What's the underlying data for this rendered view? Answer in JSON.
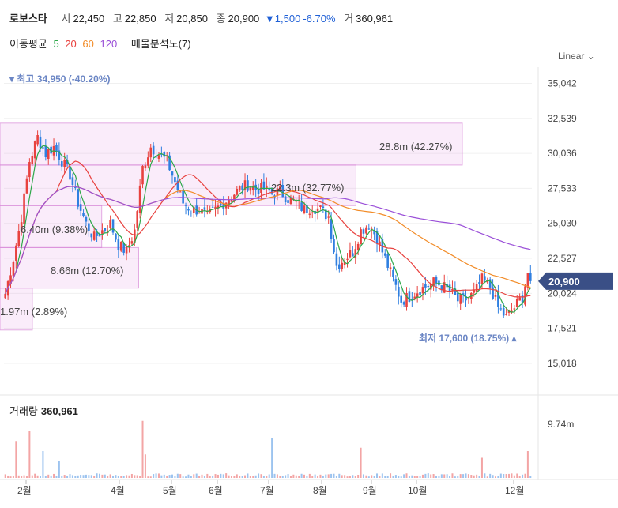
{
  "header": {
    "name": "로보스타",
    "open_label": "시",
    "open": "22,450",
    "high_label": "고",
    "high": "22,850",
    "low_label": "저",
    "low": "20,850",
    "close_label": "종",
    "close": "20,900",
    "change": "▼1,500",
    "change_pct": "-6.70%",
    "volume_label": "거",
    "volume": "360,961"
  },
  "indicators": {
    "ma_label": "이동평균",
    "ma": [
      {
        "label": "5",
        "color": "#2ea84a"
      },
      {
        "label": "20",
        "color": "#e8423f"
      },
      {
        "label": "60",
        "color": "#f28c28"
      },
      {
        "label": "120",
        "color": "#9a4fd8"
      }
    ],
    "profile_label": "매물분석도(7)"
  },
  "scale": {
    "label": "Linear",
    "icon": "chevron-down-icon"
  },
  "volume_panel": {
    "label": "거래량",
    "value": "360,961"
  },
  "chart_data": {
    "type": "candlestick",
    "price_axis": {
      "ticks": [
        "35,042",
        "32,539",
        "30,036",
        "27,533",
        "25,030",
        "22,527",
        "20,024",
        "17,521",
        "15,018"
      ],
      "ylim": [
        14000,
        36200
      ]
    },
    "volume_axis": {
      "ticks": [
        "9.74m"
      ]
    },
    "x_months": [
      "2월",
      "4월",
      "5월",
      "6월",
      "7월",
      "8월",
      "9월",
      "10월",
      "12월"
    ],
    "last_price": {
      "value": 20900,
      "label": "20,900"
    },
    "high_marker": {
      "value": 34950,
      "label": "최고 34,950 (-40.20%)"
    },
    "low_marker": {
      "value": 17600,
      "label": "최저 17,600 (18.75%)"
    },
    "volume_profile": [
      {
        "label": "28.8m (42.27%)",
        "low": 29200,
        "high": 32200,
        "length": 1.0
      },
      {
        "label": "22.3m (32.77%)",
        "low": 26300,
        "high": 29200,
        "length": 0.77
      },
      {
        "label": "6.40m (9.38%)",
        "low": 23300,
        "high": 26300,
        "length": 0.22
      },
      {
        "label": "8.66m (12.70%)",
        "low": 20400,
        "high": 23300,
        "length": 0.3
      },
      {
        "label": "1.97m (2.89%)",
        "low": 17400,
        "high": 20400,
        "length": 0.07
      }
    ],
    "price_keypoints": [
      [
        0,
        20000
      ],
      [
        3,
        22500
      ],
      [
        6,
        25500
      ],
      [
        9,
        29500
      ],
      [
        12,
        31200
      ],
      [
        15,
        30000
      ],
      [
        18,
        30500
      ],
      [
        21,
        29500
      ],
      [
        24,
        28500
      ],
      [
        27,
        26500
      ],
      [
        30,
        25000
      ],
      [
        33,
        24000
      ],
      [
        36,
        24500
      ],
      [
        39,
        25000
      ],
      [
        42,
        23500
      ],
      [
        45,
        23000
      ],
      [
        48,
        24500
      ],
      [
        51,
        29000
      ],
      [
        54,
        30500
      ],
      [
        57,
        30000
      ],
      [
        60,
        29500
      ],
      [
        63,
        28000
      ],
      [
        66,
        26500
      ],
      [
        69,
        26000
      ],
      [
        72,
        26000
      ],
      [
        75,
        25500
      ],
      [
        78,
        26000
      ],
      [
        81,
        26500
      ],
      [
        84,
        27000
      ],
      [
        87,
        27500
      ],
      [
        90,
        27800
      ],
      [
        93,
        27500
      ],
      [
        96,
        27500
      ],
      [
        99,
        27200
      ],
      [
        102,
        27300
      ],
      [
        105,
        26800
      ],
      [
        108,
        26500
      ],
      [
        111,
        26000
      ],
      [
        114,
        26200
      ],
      [
        117,
        26000
      ],
      [
        120,
        25500
      ],
      [
        123,
        22000
      ],
      [
        126,
        22500
      ],
      [
        129,
        23000
      ],
      [
        132,
        24500
      ],
      [
        135,
        25000
      ],
      [
        138,
        24000
      ],
      [
        141,
        22500
      ],
      [
        144,
        21000
      ],
      [
        147,
        19500
      ],
      [
        150,
        19800
      ],
      [
        153,
        20200
      ],
      [
        156,
        20500
      ],
      [
        159,
        20800
      ],
      [
        162,
        20600
      ],
      [
        165,
        20200
      ],
      [
        168,
        19500
      ],
      [
        171,
        19600
      ],
      [
        174,
        20000
      ],
      [
        177,
        21000
      ],
      [
        180,
        20500
      ],
      [
        183,
        19000
      ],
      [
        186,
        18300
      ],
      [
        189,
        19000
      ],
      [
        192,
        19800
      ],
      [
        194,
        21500
      ],
      [
        195,
        20900
      ]
    ],
    "volume_spikes": [
      {
        "i": 4,
        "v": 0.55
      },
      {
        "i": 9,
        "v": 0.7
      },
      {
        "i": 14,
        "v": 0.4
      },
      {
        "i": 20,
        "v": 0.25
      },
      {
        "i": 51,
        "v": 0.85
      },
      {
        "i": 52,
        "v": 0.35
      },
      {
        "i": 99,
        "v": 0.6
      },
      {
        "i": 132,
        "v": 0.45
      },
      {
        "i": 177,
        "v": 0.3
      },
      {
        "i": 194,
        "v": 0.4
      }
    ]
  }
}
